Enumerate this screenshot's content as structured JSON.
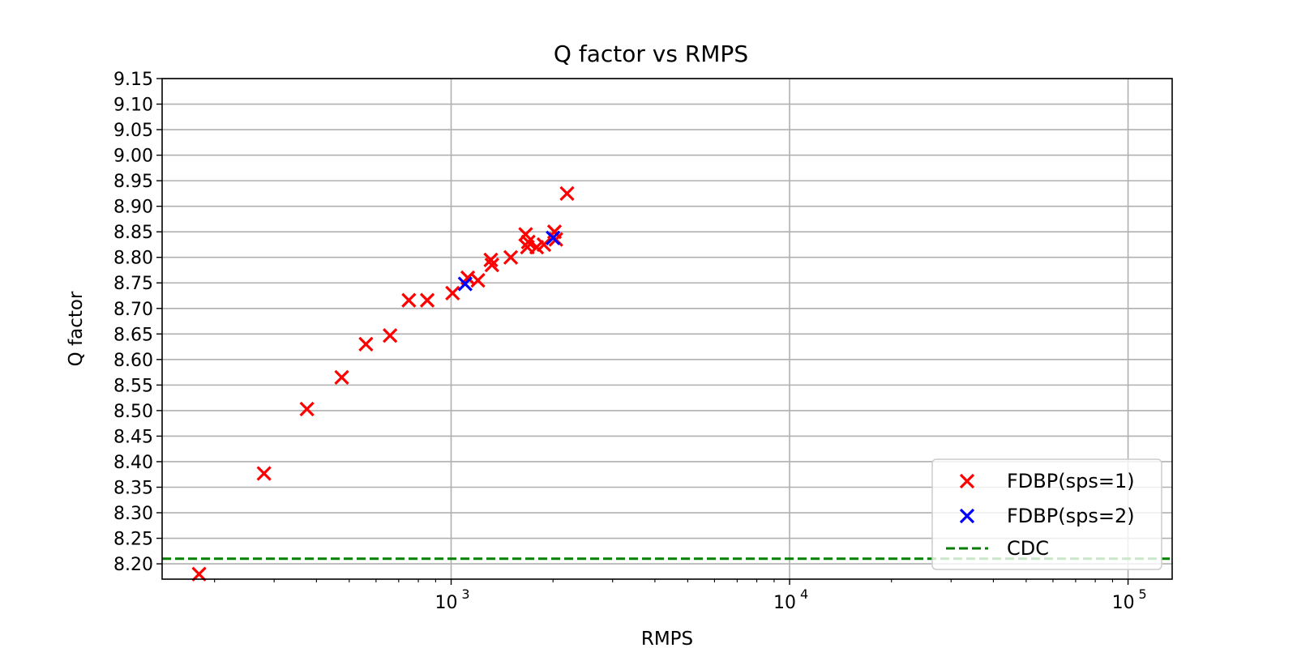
{
  "chart_data": {
    "type": "scatter",
    "title": "Q factor vs RMPS",
    "xlabel": "RMPS",
    "ylabel": "Q factor",
    "xscale": "log",
    "xlim": [
      140,
      135000
    ],
    "ylim": [
      8.17,
      9.15
    ],
    "xticks": [
      {
        "value": 1000,
        "label": "10",
        "exp": "3"
      },
      {
        "value": 10000,
        "label": "10",
        "exp": "4"
      },
      {
        "value": 100000,
        "label": "10",
        "exp": "5"
      }
    ],
    "yticks": [
      {
        "value": 8.2,
        "label": "8.20"
      },
      {
        "value": 8.25,
        "label": "8.25"
      },
      {
        "value": 8.3,
        "label": "8.30"
      },
      {
        "value": 8.35,
        "label": "8.35"
      },
      {
        "value": 8.4,
        "label": "8.40"
      },
      {
        "value": 8.45,
        "label": "8.45"
      },
      {
        "value": 8.5,
        "label": "8.50"
      },
      {
        "value": 8.55,
        "label": "8.55"
      },
      {
        "value": 8.6,
        "label": "8.60"
      },
      {
        "value": 8.65,
        "label": "8.65"
      },
      {
        "value": 8.7,
        "label": "8.70"
      },
      {
        "value": 8.75,
        "label": "8.75"
      },
      {
        "value": 8.8,
        "label": "8.80"
      },
      {
        "value": 8.85,
        "label": "8.85"
      },
      {
        "value": 8.9,
        "label": "8.90"
      },
      {
        "value": 8.95,
        "label": "8.95"
      },
      {
        "value": 9.0,
        "label": "9.00"
      },
      {
        "value": 9.05,
        "label": "9.05"
      },
      {
        "value": 9.1,
        "label": "9.10"
      },
      {
        "value": 9.15,
        "label": "9.15"
      }
    ],
    "grid": true,
    "legend_position": "bottom-right",
    "series": [
      {
        "name": "FDBP(sps=1)",
        "color": "#ff0000",
        "marker": "x",
        "points": [
          {
            "x": 180,
            "y": 8.18
          },
          {
            "x": 280,
            "y": 8.377
          },
          {
            "x": 375,
            "y": 8.503
          },
          {
            "x": 475,
            "y": 8.565
          },
          {
            "x": 560,
            "y": 8.63
          },
          {
            "x": 660,
            "y": 8.647
          },
          {
            "x": 750,
            "y": 8.716
          },
          {
            "x": 850,
            "y": 8.716
          },
          {
            "x": 1010,
            "y": 8.73
          },
          {
            "x": 1120,
            "y": 8.76
          },
          {
            "x": 1200,
            "y": 8.755
          },
          {
            "x": 1310,
            "y": 8.795
          },
          {
            "x": 1320,
            "y": 8.785
          },
          {
            "x": 1500,
            "y": 8.8
          },
          {
            "x": 1660,
            "y": 8.845
          },
          {
            "x": 1680,
            "y": 8.82
          },
          {
            "x": 1690,
            "y": 8.83
          },
          {
            "x": 1790,
            "y": 8.82
          },
          {
            "x": 1880,
            "y": 8.825
          },
          {
            "x": 2020,
            "y": 8.85
          },
          {
            "x": 2040,
            "y": 8.835
          },
          {
            "x": 2200,
            "y": 8.925
          }
        ]
      },
      {
        "name": "FDBP(sps=2)",
        "color": "#0000ff",
        "marker": "x",
        "points": [
          {
            "x": 1100,
            "y": 8.748
          },
          {
            "x": 2000,
            "y": 8.838
          }
        ]
      }
    ],
    "reference_lines": [
      {
        "name": "CDC",
        "y": 8.21,
        "color": "#008000",
        "style": "dashed"
      }
    ]
  }
}
